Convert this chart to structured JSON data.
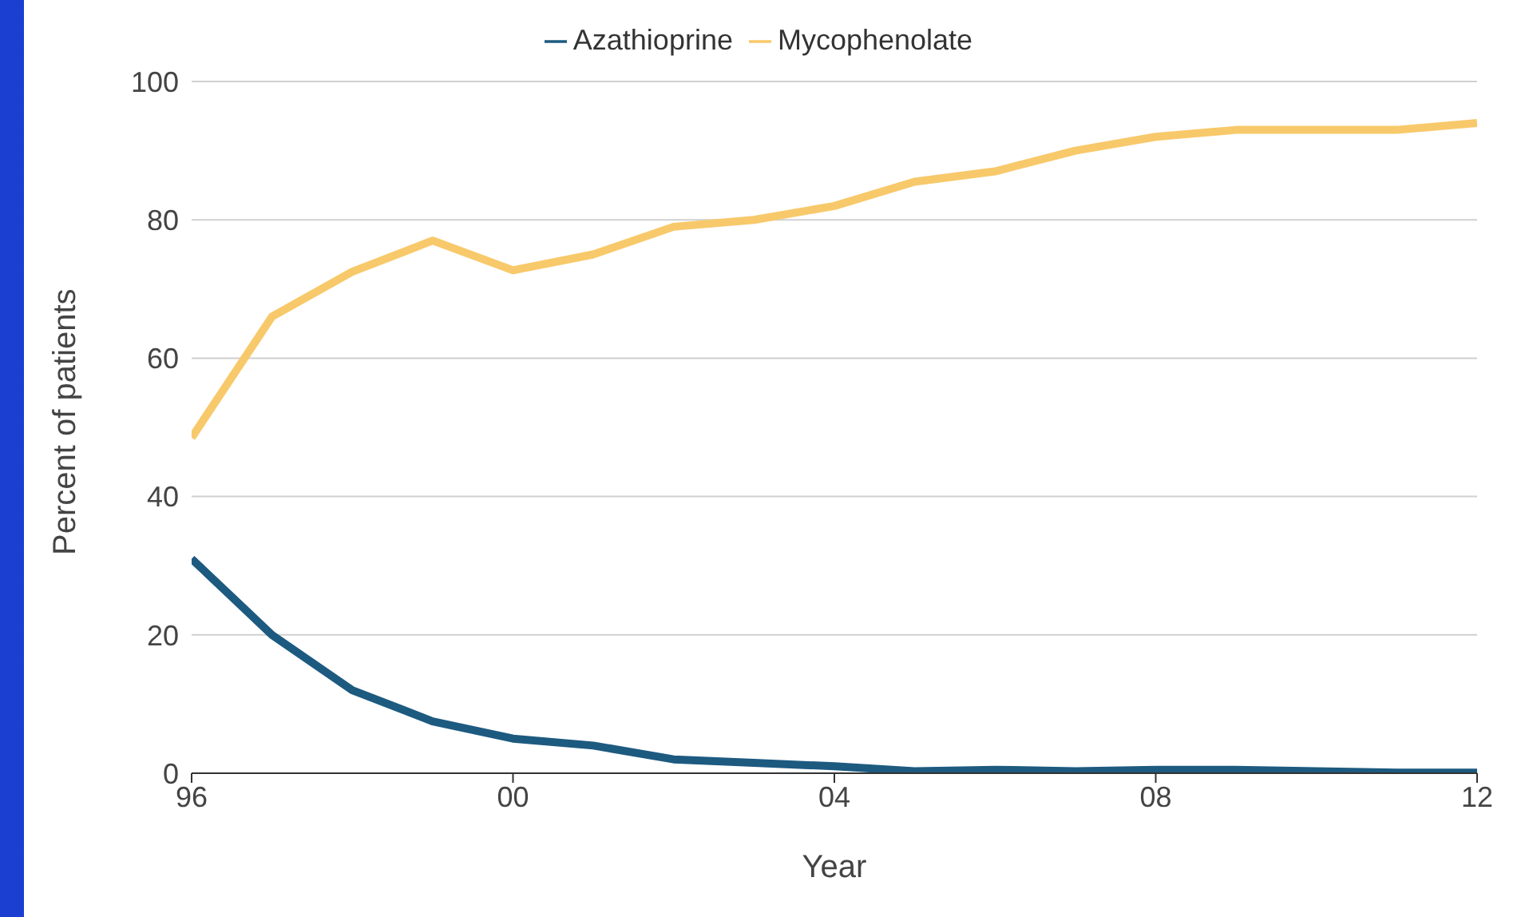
{
  "chart_data": {
    "type": "line",
    "xlabel": "Year",
    "ylabel": "Percent of patients",
    "x": [
      1996,
      1997,
      1998,
      1999,
      2000,
      2001,
      2002,
      2003,
      2004,
      2005,
      2006,
      2007,
      2008,
      2009,
      2010,
      2011,
      2012
    ],
    "series": [
      {
        "name": "Azathioprine",
        "color": "#1d5a80",
        "values": [
          31,
          20,
          12,
          7.5,
          5,
          4,
          2,
          1.5,
          1,
          0.3,
          0.5,
          0.3,
          0.5,
          0.5,
          0.3,
          0.1,
          0.1
        ]
      },
      {
        "name": "Mycophenolate",
        "color": "#f8c96a",
        "values": [
          48.5,
          66,
          72.5,
          77,
          72.7,
          75,
          79,
          80,
          82,
          85.5,
          87,
          90,
          92,
          93,
          93,
          93,
          94
        ]
      }
    ],
    "xlim": [
      1996,
      2012
    ],
    "xticks": [
      {
        "value": 1996,
        "label": "96"
      },
      {
        "value": 2000,
        "label": "00"
      },
      {
        "value": 2004,
        "label": "04"
      },
      {
        "value": 2008,
        "label": "08"
      },
      {
        "value": 2012,
        "label": "12"
      }
    ],
    "ylim": [
      0,
      100
    ],
    "yticks": [
      0,
      20,
      40,
      60,
      80,
      100
    ],
    "grid": "y",
    "legend": "top",
    "marker": "none",
    "line_style": "solid"
  }
}
